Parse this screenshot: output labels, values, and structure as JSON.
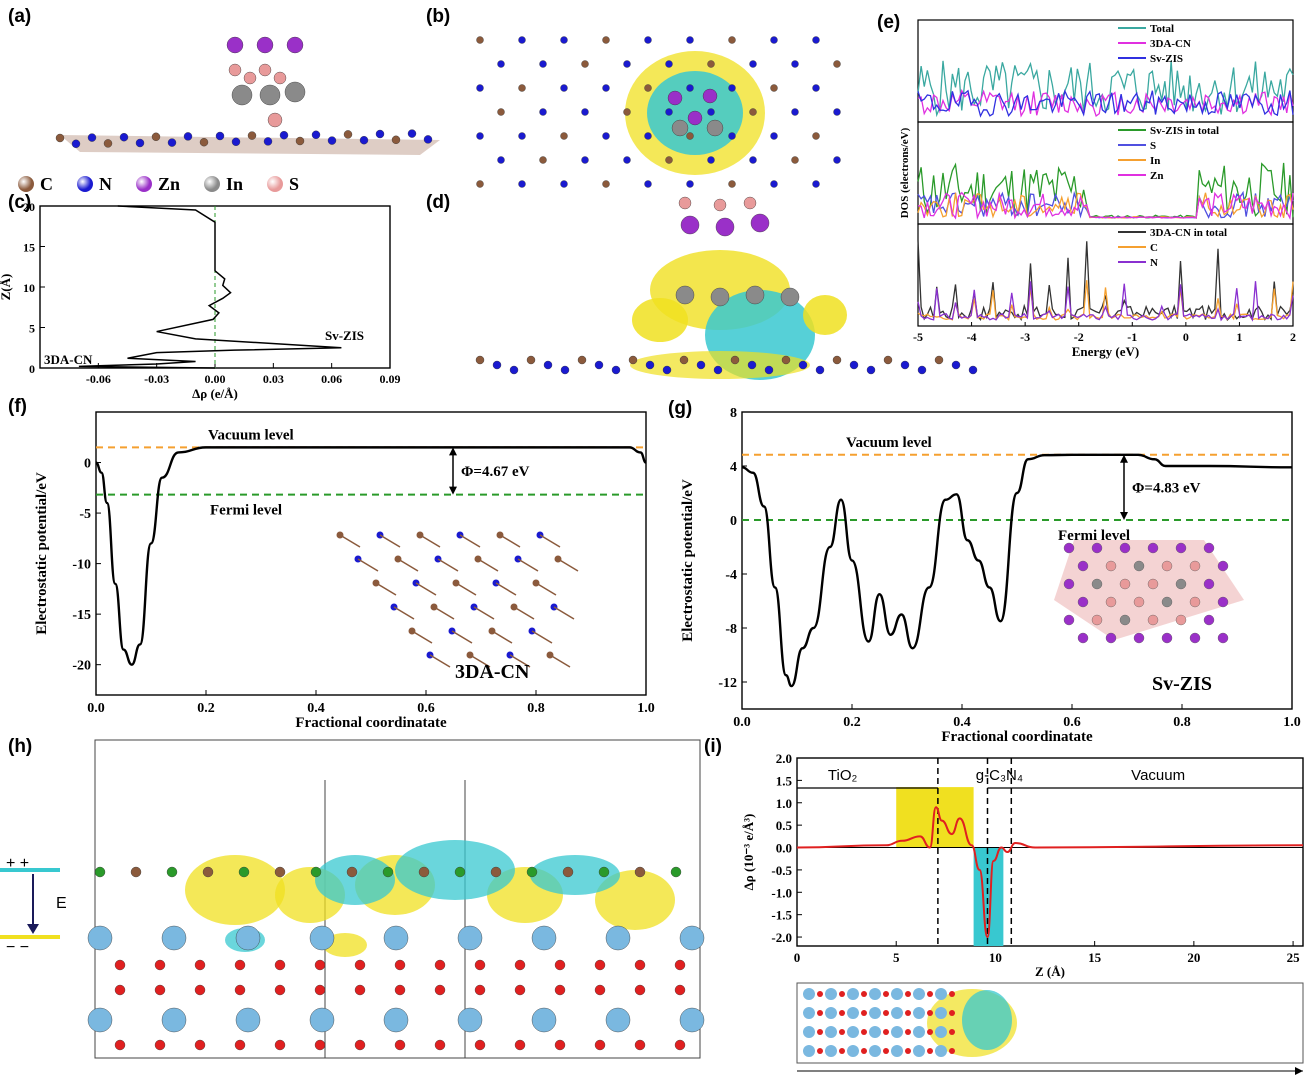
{
  "panel_labels": {
    "a": "(a)",
    "b": "(b)",
    "c": "(c)",
    "d": "(d)",
    "e": "(e)",
    "f": "(f)",
    "g": "(g)",
    "h": "(h)",
    "i": "(i)"
  },
  "atom_legend": [
    {
      "label": "C",
      "color": "#8b5a3c"
    },
    {
      "label": "N",
      "color": "#1a1ad0"
    },
    {
      "label": "Zn",
      "color": "#9a30c8"
    },
    {
      "label": "In",
      "color": "#8a8a8a"
    },
    {
      "label": "S",
      "color": "#e89a9a"
    }
  ],
  "h_labels": {
    "plus": "+ +",
    "minus": "− −",
    "field": "E"
  },
  "i_xlabel": "Z (Å)",
  "colors": {
    "cyan": "#38c8d0",
    "yellow": "#f0e020",
    "orange": "#f5a030",
    "green": "#2a9a2a",
    "red": "#e02020",
    "ti": "#7ab8e0",
    "o": "#e02020"
  },
  "chart_data": [
    {
      "id": "c",
      "type": "line",
      "xlabel": "Δρ (e/Å)",
      "ylabel": "Z(Å)",
      "xlim": [
        -0.09,
        0.09
      ],
      "ylim": [
        0,
        20
      ],
      "xticks": [
        "-0.06",
        "-0.03",
        "0.00",
        "0.03",
        "0.06",
        "0.09"
      ],
      "xtick_values": [
        -0.06,
        -0.03,
        0,
        0.03,
        0.06,
        0.09
      ],
      "yticks": [
        "0",
        "5",
        "10",
        "15",
        "20"
      ],
      "ytick_values": [
        0,
        5,
        10,
        15,
        20
      ],
      "annotations": [
        "3DA-CN",
        "Sv-ZIS"
      ],
      "series": [
        {
          "x": [
            -0.05,
            -0.01,
            0,
            0,
            0,
            0.005,
            0.004,
            0.008,
            0.004,
            -0.003,
            0.002,
            -0.001,
            -0.03,
            -0.01,
            0.065,
            0.01,
            -0.03,
            -0.045,
            -0.01,
            -0.03,
            -0.07,
            0
          ],
          "y": [
            20,
            19.5,
            18,
            15,
            12,
            11,
            10.2,
            9.3,
            8.6,
            7.7,
            6.8,
            6.0,
            4.5,
            3.6,
            2.5,
            2.2,
            1.9,
            1.2,
            0.8,
            0.5,
            0.2,
            0
          ]
        }
      ]
    },
    {
      "id": "e1",
      "type": "line",
      "ylabel": "DOS (electrons/eV)",
      "series_names": [
        "Total",
        "3DA-CN",
        "Sv-ZIS"
      ]
    },
    {
      "id": "e2",
      "type": "line",
      "series_names": [
        "Sv-ZIS in total",
        "S",
        "In",
        "Zn"
      ]
    },
    {
      "id": "e3",
      "type": "line",
      "xlabel": "Energy (eV)",
      "xlim": [
        -5,
        2
      ],
      "xticks": [
        "-5",
        "-4",
        "-3",
        "-2",
        "-1",
        "0",
        "1",
        "2"
      ],
      "xtick_values": [
        -5,
        -4,
        -3,
        -2,
        -1,
        0,
        1,
        2
      ],
      "series_names": [
        "3DA-CN  in total",
        "C",
        "N"
      ],
      "series": [
        {
          "name": "3DA-CN  in total",
          "x": [
            -4.8,
            -4.6,
            -4.35,
            -4.0,
            -3.6,
            -3.2,
            -2.8,
            -2.4,
            -1.8,
            -1.45,
            -1.3,
            -0.95,
            -0.35,
            1.25,
            1.7
          ],
          "y": [
            0.32,
            0.28,
            0.36,
            0.4,
            0.3,
            0.34,
            0.22,
            0.36,
            0.3,
            0.95,
            0.6,
            0.45,
            0.45,
            0.38,
            0.4
          ]
        }
      ]
    },
    {
      "id": "f",
      "type": "line",
      "xlabel": "Fractional coordinatate",
      "ylabel": "Electrostatic potential/eV",
      "xlim": [
        0,
        1
      ],
      "ylim": [
        -23,
        5
      ],
      "xticks": [
        "0.0",
        "0.2",
        "0.4",
        "0.6",
        "0.8",
        "1.0"
      ],
      "xtick_values": [
        0,
        0.2,
        0.4,
        0.6,
        0.8,
        1
      ],
      "yticks": [
        "0",
        "-5",
        "-10",
        "-15",
        "-20"
      ],
      "ytick_values": [
        0,
        -5,
        -10,
        -15,
        -20
      ],
      "vacuum_level": 1.5,
      "fermi_level": -3.17,
      "labels": {
        "vacuum": "Vacuum level",
        "fermi": "Fermi level",
        "phi": "Φ=4.67 eV",
        "structure": "3DA-CN"
      },
      "series": [
        {
          "x": [
            0,
            0.01,
            0.02,
            0.035,
            0.05,
            0.065,
            0.08,
            0.1,
            0.12,
            0.15,
            0.2,
            0.3,
            0.5,
            0.8,
            0.97,
            0.99,
            1.0
          ],
          "y": [
            0,
            -1,
            -4,
            -12,
            -18.5,
            -20,
            -18,
            -8,
            -1.5,
            1.0,
            1.5,
            1.5,
            1.5,
            1.5,
            1.5,
            1.0,
            0
          ]
        }
      ]
    },
    {
      "id": "g",
      "type": "line",
      "xlabel": "Fractional coordinatate",
      "ylabel": "Electrostatic potential/eV",
      "xlim": [
        0,
        1
      ],
      "ylim": [
        -14,
        8
      ],
      "xticks": [
        "0.0",
        "0.2",
        "0.4",
        "0.6",
        "0.8",
        "1.0"
      ],
      "xtick_values": [
        0,
        0.2,
        0.4,
        0.6,
        0.8,
        1
      ],
      "yticks": [
        "8",
        "4",
        "0",
        "-4",
        "-8",
        "-12"
      ],
      "ytick_values": [
        8,
        4,
        0,
        -4,
        -8,
        -12
      ],
      "vacuum_level": 4.83,
      "fermi_level": 0,
      "labels": {
        "vacuum": "Vacuum level",
        "fermi": "Fermi level",
        "phi": "Φ=4.83 eV",
        "structure": "Sv-ZIS"
      },
      "series": [
        {
          "x": [
            0,
            0.02,
            0.04,
            0.06,
            0.08,
            0.09,
            0.11,
            0.13,
            0.16,
            0.18,
            0.2,
            0.23,
            0.25,
            0.27,
            0.29,
            0.31,
            0.34,
            0.37,
            0.39,
            0.41,
            0.43,
            0.45,
            0.47,
            0.5,
            0.52,
            0.55,
            0.6,
            0.72,
            0.75,
            0.77,
            0.85,
            1.0
          ],
          "y": [
            3.9,
            3.5,
            1.0,
            -5,
            -11.5,
            -12.3,
            -9.5,
            -8,
            -2,
            1.5,
            -3,
            -9,
            -5.5,
            -8.5,
            -7,
            -9.5,
            -5,
            1.5,
            1.9,
            -1.5,
            -3,
            -5,
            -7.5,
            2,
            4.5,
            4.8,
            4.83,
            4.83,
            4.5,
            4.0,
            4.0,
            3.9
          ]
        }
      ]
    },
    {
      "id": "i",
      "type": "line",
      "xlabel": "Z (Å)",
      "ylabel": "Δρ (10⁻³ e/Å³)",
      "xlim": [
        0,
        25.5
      ],
      "ylim": [
        -2.2,
        2.0
      ],
      "xticks": [
        "0",
        "5",
        "10",
        "15",
        "20",
        "25"
      ],
      "xtick_values": [
        0,
        5,
        10,
        15,
        20,
        25
      ],
      "yticks": [
        "2.0",
        "1.5",
        "1.0",
        "0.5",
        "0.0",
        "-0.5",
        "-1.0",
        "-1.5",
        "-2.0"
      ],
      "ytick_values": [
        2,
        1.5,
        1,
        0.5,
        0,
        -0.5,
        -1,
        -1.5,
        -2
      ],
      "regions": [
        "TiO₂",
        "g-C₃N₄",
        "Vacuum"
      ],
      "series": [
        {
          "x": [
            0,
            4.5,
            5.3,
            6.2,
            6.7,
            7.0,
            7.3,
            7.8,
            8.2,
            8.8,
            9.2,
            9.6,
            9.9,
            10.3,
            10.6,
            11.0,
            12.0,
            25.5
          ],
          "y": [
            0,
            0.05,
            0.15,
            0.25,
            0.0,
            0.9,
            0.6,
            0.3,
            0.65,
            0.05,
            -0.5,
            -2.0,
            -0.3,
            0.0,
            -0.1,
            0.1,
            0,
            0.05
          ]
        }
      ]
    }
  ]
}
